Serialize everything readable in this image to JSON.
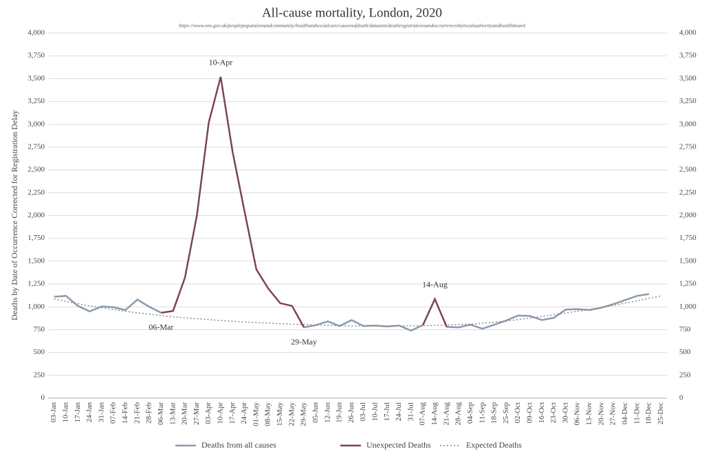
{
  "chart_data": {
    "type": "line",
    "title": "All-cause mortality, London, 2020",
    "subtitle": "https://www.ons.gov.uk/peoplepopulationandcommunity/healthandsocialcare/causesofdeath/datasets/deathregistrationsandoccurrencesbylocalauthorityandhealthboard",
    "y_label": "Deaths by Date of Occurrence Corrected for Registration Delay",
    "categories": [
      "03-Jan",
      "10-Jan",
      "17-Jan",
      "24-Jan",
      "31-Jan",
      "07-Feb",
      "14-Feb",
      "21-Feb",
      "28-Feb",
      "06-Mar",
      "13-Mar",
      "20-Mar",
      "27-Mar",
      "03-Apr",
      "10-Apr",
      "17-Apr",
      "24-Apr",
      "01-May",
      "08-May",
      "15-May",
      "22-May",
      "29-May",
      "05-Jun",
      "12-Jun",
      "19-Jun",
      "26-Jun",
      "03-Jul",
      "10-Jul",
      "17-Jul",
      "24-Jul",
      "31-Jul",
      "07-Aug",
      "14-Aug",
      "21-Aug",
      "28-Aug",
      "04-Sep",
      "11-Sep",
      "18-Sep",
      "25-Sep",
      "02-Oct",
      "09-Oct",
      "16-Oct",
      "23-Oct",
      "30-Oct",
      "06-Nov",
      "13-Nov",
      "20-Nov",
      "27-Nov",
      "04-Dec",
      "11-Dec",
      "18-Dec",
      "25-Dec"
    ],
    "series": [
      {
        "name": "Deaths from all causes",
        "color": "#8a9aab",
        "dash": "solid",
        "values": [
          1110,
          1120,
          1010,
          950,
          1005,
          995,
          965,
          1080,
          1000,
          935,
          null,
          null,
          null,
          null,
          null,
          null,
          null,
          null,
          null,
          null,
          null,
          775,
          800,
          840,
          790,
          855,
          790,
          795,
          785,
          795,
          740,
          800,
          null,
          780,
          775,
          805,
          760,
          805,
          850,
          905,
          900,
          855,
          880,
          970,
          975,
          965,
          990,
          1030,
          1075,
          1120,
          1140,
          null
        ]
      },
      {
        "name": "Unexpected Deaths",
        "color": "#7b4452",
        "dash": "solid",
        "values": [
          null,
          null,
          null,
          null,
          null,
          null,
          null,
          null,
          null,
          935,
          955,
          1320,
          2000,
          3020,
          3520,
          2700,
          2050,
          1410,
          1200,
          1040,
          1010,
          775,
          null,
          null,
          null,
          null,
          null,
          null,
          null,
          null,
          null,
          800,
          1085,
          780,
          null,
          null,
          null,
          null,
          null,
          null,
          null,
          null,
          null,
          null,
          null,
          null,
          null,
          null,
          null,
          null,
          null,
          null
        ]
      },
      {
        "name": "Expected Deaths",
        "color": "#888888",
        "dash": "dotted",
        "values": [
          1085,
          1060,
          1035,
          1010,
          990,
          970,
          950,
          935,
          920,
          905,
          890,
          880,
          870,
          860,
          850,
          842,
          835,
          828,
          822,
          816,
          810,
          805,
          800,
          797,
          794,
          792,
          790,
          790,
          790,
          790,
          792,
          794,
          797,
          800,
          805,
          810,
          820,
          832,
          845,
          860,
          877,
          895,
          913,
          932,
          952,
          972,
          994,
          1017,
          1041,
          1066,
          1092,
          1120
        ]
      }
    ],
    "annotations": [
      {
        "text": "10-Apr",
        "series": 1,
        "index": 14,
        "position": "above"
      },
      {
        "text": "06-Mar",
        "series": 1,
        "index": 9,
        "position": "below"
      },
      {
        "text": "29-May",
        "series": 1,
        "index": 21,
        "position": "below"
      },
      {
        "text": "14-Aug",
        "series": 1,
        "index": 32,
        "position": "above"
      }
    ],
    "ylim": [
      0,
      4000
    ],
    "yticks": [
      0,
      250,
      500,
      750,
      {
        "value": 1000,
        "label": "1,000"
      },
      {
        "value": 1250,
        "label": "1,250"
      },
      {
        "value": 1500,
        "label": "1,500"
      },
      {
        "value": 1750,
        "label": "1,750"
      },
      {
        "value": 2000,
        "label": "2,000"
      },
      {
        "value": 2250,
        "label": "2,250"
      },
      {
        "value": 2500,
        "label": "2,500"
      },
      {
        "value": 2750,
        "label": "2,750"
      },
      {
        "value": 3000,
        "label": "3,000"
      },
      {
        "value": 3250,
        "label": "3,250"
      },
      {
        "value": 3500,
        "label": "3,500"
      },
      {
        "value": 3750,
        "label": "3,750"
      },
      {
        "value": 4000,
        "label": "4,000"
      }
    ],
    "y2lim": [
      0,
      4000
    ],
    "y2ticks": [
      0,
      250,
      500,
      750,
      {
        "value": 1000,
        "label": "1,000"
      },
      {
        "value": 1250,
        "label": "1,250"
      },
      {
        "value": 1500,
        "label": "1,500"
      },
      {
        "value": 1750,
        "label": "1,750"
      },
      {
        "value": 2000,
        "label": "2,000"
      },
      {
        "value": 2250,
        "label": "2,250"
      },
      {
        "value": 2500,
        "label": "2,500"
      },
      {
        "value": 2750,
        "label": "2,750"
      },
      {
        "value": 3000,
        "label": "3,000"
      },
      {
        "value": 3250,
        "label": "3,250"
      },
      {
        "value": 3500,
        "label": "3,500"
      },
      {
        "value": 3750,
        "label": "3,750"
      },
      {
        "value": 4000,
        "label": "4,000"
      }
    ],
    "grid": true,
    "legend": "bottom"
  }
}
